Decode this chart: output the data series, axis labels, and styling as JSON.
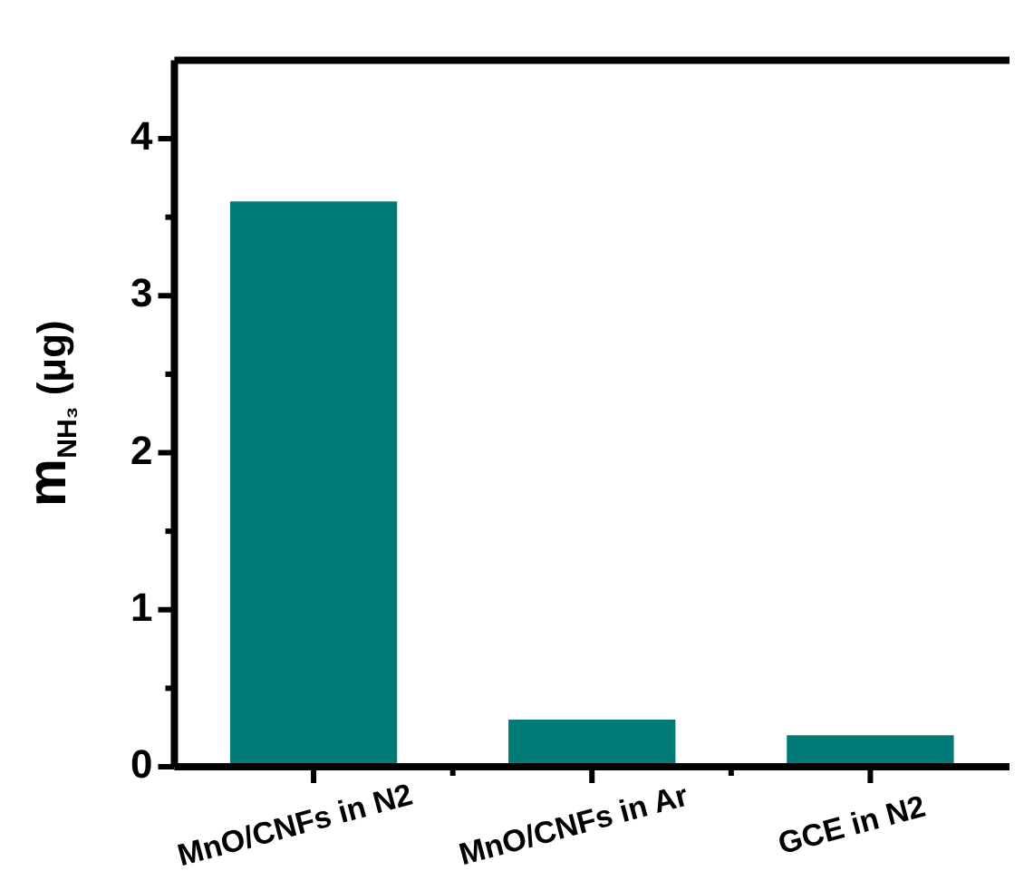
{
  "chart_data": {
    "type": "bar",
    "ylabel": "m$_{NH₃}$ (μg)",
    "categories": [
      "MnO/CNFs in N2",
      "MnO/CNFs in Ar",
      "GCE in N2"
    ],
    "values": [
      3.6,
      0.3,
      0.2
    ],
    "color": "#007b78",
    "ylim": [
      0,
      4.5
    ],
    "yticks": [
      0,
      {
        "value": 0.5,
        "label": null
      },
      1,
      {
        "value": 1.5,
        "label": null
      },
      2,
      {
        "value": 2.5,
        "label": null
      },
      3,
      {
        "value": 3.5,
        "label": null
      },
      4
    ],
    "grid": false,
    "legend": false
  }
}
